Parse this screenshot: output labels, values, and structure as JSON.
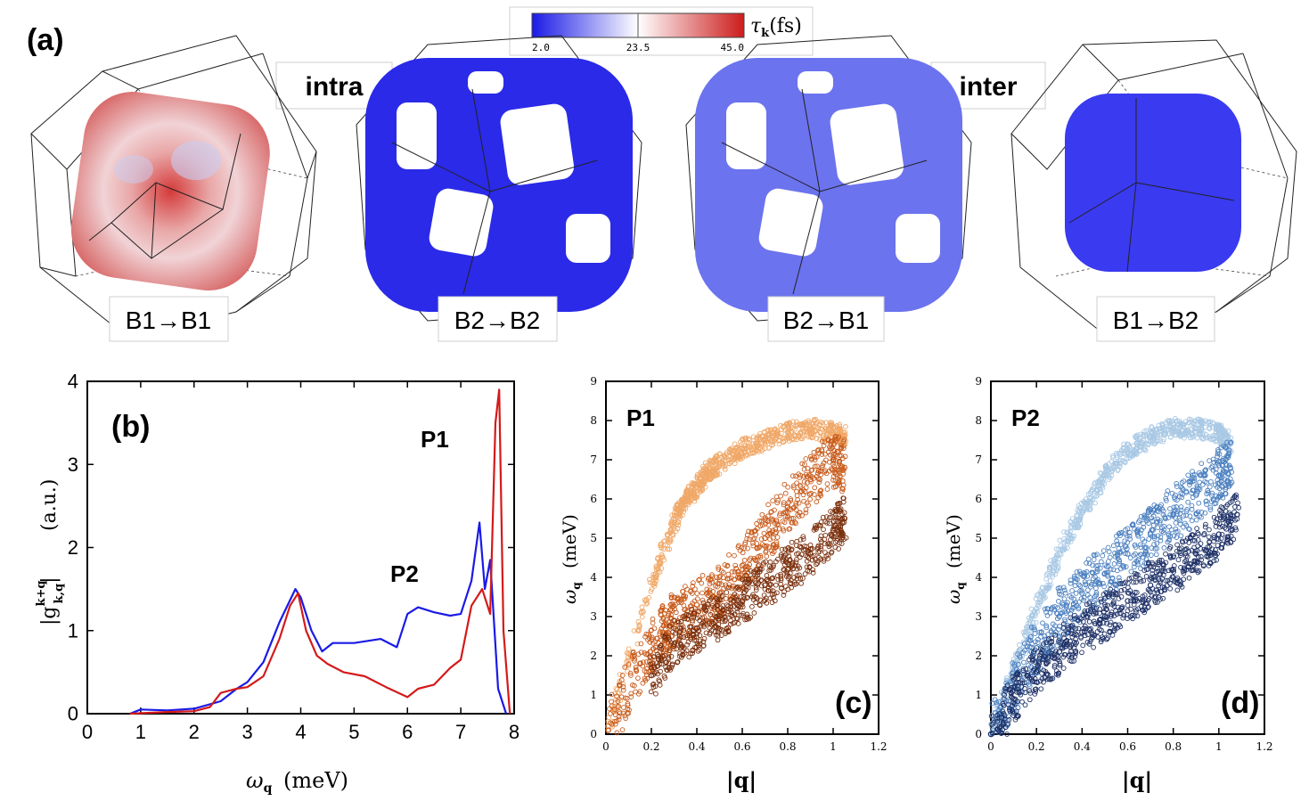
{
  "panel_a": {
    "panel_label": "(a)",
    "intra_label": "intra",
    "inter_label": "inter",
    "colorbar": {
      "ticks": [
        "2.0",
        "23.5",
        "45.0"
      ],
      "colors": {
        "low": "#1a1ae6",
        "mid": "#ffffff",
        "high": "#cc1c1c"
      }
    },
    "fermi_surfaces": [
      {
        "transition": "B1→B1",
        "color": "#d43a3a"
      },
      {
        "transition": "B2→B2",
        "color": "#2a2ae8"
      },
      {
        "transition": "B2→B1",
        "color": "#6b73ee"
      },
      {
        "transition": "B1→B2",
        "color": "#3a3af0"
      }
    ]
  },
  "chart_data": [
    {
      "panel": "(b)",
      "type": "line",
      "xlabel": "(meV)",
      "ylabel": "(a.u.)",
      "xlim": [
        0,
        8
      ],
      "ylim": [
        0,
        4
      ],
      "xticks": [
        "0",
        "1",
        "2",
        "3",
        "4",
        "5",
        "6",
        "7",
        "8"
      ],
      "yticks": [
        "0",
        "1",
        "2",
        "3",
        "4"
      ],
      "annotations": [
        "P1",
        "P2"
      ],
      "series": [
        {
          "color": "#1a1ae6",
          "x": [
            0.8,
            1.0,
            1.5,
            2.0,
            2.5,
            2.8,
            3.0,
            3.3,
            3.6,
            3.9,
            4.0,
            4.2,
            4.4,
            4.6,
            5.0,
            5.5,
            5.8,
            6.0,
            6.2,
            6.5,
            6.8,
            7.0,
            7.2,
            7.35,
            7.45,
            7.55,
            7.7,
            7.85
          ],
          "y": [
            0.0,
            0.05,
            0.04,
            0.06,
            0.15,
            0.3,
            0.38,
            0.62,
            1.1,
            1.5,
            1.4,
            1.0,
            0.75,
            0.85,
            0.85,
            0.9,
            0.8,
            1.2,
            1.28,
            1.22,
            1.18,
            1.2,
            1.6,
            2.3,
            1.5,
            1.85,
            0.3,
            0.0
          ]
        },
        {
          "color": "#d41a1a",
          "x": [
            0.8,
            1.5,
            2.0,
            2.3,
            2.5,
            2.8,
            3.0,
            3.3,
            3.6,
            3.8,
            3.95,
            4.1,
            4.3,
            4.5,
            4.8,
            5.2,
            5.6,
            6.0,
            6.2,
            6.5,
            6.8,
            7.0,
            7.2,
            7.4,
            7.55,
            7.65,
            7.72,
            7.8,
            7.92
          ],
          "y": [
            0.0,
            0.02,
            0.03,
            0.08,
            0.25,
            0.3,
            0.32,
            0.45,
            0.9,
            1.3,
            1.45,
            1.0,
            0.7,
            0.6,
            0.5,
            0.45,
            0.32,
            0.2,
            0.3,
            0.35,
            0.55,
            0.65,
            1.3,
            1.5,
            1.2,
            3.5,
            3.9,
            1.0,
            0.0
          ]
        }
      ]
    },
    {
      "panel": "(c)",
      "type": "scatter",
      "annotation": "P1",
      "xlabel": "|q|",
      "ylabel": "(meV)",
      "xlim": [
        0,
        1.2
      ],
      "ylim": [
        0,
        9
      ],
      "xticks": [
        "0",
        "0.2",
        "0.4",
        "0.6",
        "0.8",
        "1",
        "1.2"
      ],
      "yticks": [
        "0",
        "1",
        "2",
        "3",
        "4",
        "5",
        "6",
        "7",
        "8",
        "9"
      ],
      "series": [
        {
          "color": "#f0a868",
          "x": [
            0.01,
            0.21,
            0.3,
            0.35,
            0.4,
            0.45,
            0.5,
            0.6,
            0.7,
            0.8,
            0.9,
            1.0,
            1.05
          ],
          "y": [
            0.2,
            4.0,
            5.4,
            6.0,
            6.3,
            6.7,
            6.9,
            7.3,
            7.5,
            7.7,
            7.8,
            7.7,
            7.6
          ]
        },
        {
          "color": "#c85a1a",
          "x": [
            0.01,
            0.15,
            0.25,
            0.3,
            0.4,
            0.5,
            0.6,
            0.7,
            0.8,
            0.9,
            1.0,
            1.05
          ],
          "y": [
            0.1,
            1.8,
            2.6,
            2.9,
            3.3,
            3.6,
            4.3,
            5.0,
            5.8,
            6.5,
            7.0,
            6.8
          ]
        },
        {
          "color": "#7a2f0c",
          "x": [
            0.2,
            0.3,
            0.4,
            0.5,
            0.6,
            0.7,
            0.8,
            0.9,
            1.0,
            1.05
          ],
          "y": [
            1.5,
            2.3,
            2.7,
            3.0,
            3.4,
            3.8,
            4.2,
            4.6,
            5.2,
            5.5
          ]
        }
      ]
    },
    {
      "panel": "(d)",
      "type": "scatter",
      "annotation": "P2",
      "xlabel": "|q|",
      "ylabel": "(meV)",
      "xlim": [
        0,
        1.2
      ],
      "ylim": [
        0,
        9
      ],
      "xticks": [
        "0",
        "0.2",
        "0.4",
        "0.6",
        "0.8",
        "1",
        "1.2"
      ],
      "yticks": [
        "0",
        "1",
        "2",
        "3",
        "4",
        "5",
        "6",
        "7",
        "8",
        "9"
      ],
      "series": [
        {
          "color": "#a8c8e4",
          "x": [
            0.0,
            0.1,
            0.2,
            0.3,
            0.4,
            0.5,
            0.6,
            0.7,
            0.8,
            0.9,
            1.0,
            1.05
          ],
          "y": [
            0.0,
            1.6,
            3.2,
            4.6,
            5.7,
            6.6,
            7.2,
            7.6,
            7.8,
            7.8,
            7.7,
            7.4
          ]
        },
        {
          "color": "#4a7fbf",
          "x": [
            0.0,
            0.1,
            0.2,
            0.3,
            0.4,
            0.5,
            0.6,
            0.7,
            0.8,
            0.9,
            1.0,
            1.05
          ],
          "y": [
            0.0,
            1.2,
            2.2,
            3.0,
            3.6,
            4.1,
            4.6,
            5.1,
            5.6,
            6.1,
            6.6,
            6.8
          ]
        },
        {
          "color": "#1c2f66",
          "x": [
            0.0,
            0.1,
            0.2,
            0.3,
            0.4,
            0.5,
            0.6,
            0.7,
            0.8,
            0.9,
            1.0,
            1.08
          ],
          "y": [
            0.0,
            0.9,
            1.6,
            2.1,
            2.6,
            3.0,
            3.4,
            3.8,
            4.2,
            4.6,
            5.1,
            5.6
          ]
        }
      ]
    }
  ]
}
